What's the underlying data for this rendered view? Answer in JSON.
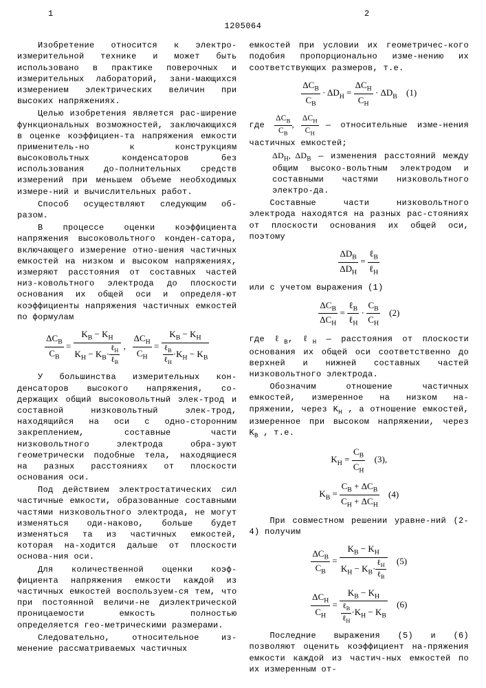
{
  "docnum": "1205064",
  "topleft": "1",
  "topright": "2",
  "line_numbers_left": [
    "5",
    "10",
    "15",
    "20",
    "25",
    "30",
    "35",
    "40",
    "45",
    "50",
    "55"
  ],
  "col1": {
    "para1": "Изобретение относится к электро-измерительной технике и может быть использовано в практике поверочных и измерительных лабораторий, зани-мающихся измерением электрических величин при высоких напряжениях.",
    "para2": "Целью изобретения является рас-ширение функциональных возможностей, заключающихся в оценке коэффициен-та напряжения емкости применитель-но к конструкциям высоковольтных конденсаторов без использования до-полнительных средств измерений при меньшем объеме необходимых измере-ний и вычислительных работ.",
    "para3": "Способ осуществляют следующим об-разом.",
    "para4": "В процессе оценки коэффициента напряжения высоковольтного конден-сатора, включающего измерение отно-шения частичных емкостей на низком и высоком напряжениях, измеряют расстояния от составных частей низ-ковольтного электрода до плоскости основания их общей оси и определя-ют коэффициенты напряжения частичных емкостей по формулам",
    "para5": "У большинства измерительных кон-денсаторов высокого напряжения, со-держащих общий высоковольтный элек-трод и составной низковольтный элек-трод, находящийся на оси с одно-сторонним закреплением, составные части низковольтного электрода обра-зуют геометрически подобные тела, находящиеся на разных расстояниях от плоскости основания оси.",
    "para6": "Под действием электростатических сил частичные емкости, образованные составными частями низковольтного электрода, не могут изменяться оди-наково, больше будет изменяться та из частичных емкостей, которая на-ходится дальше от плоскости основа-ния оси.",
    "para7": "Для количественной оценки коэф-фициента напряжения емкости каждой из частичных емкостей воспользуем-ся тем, что при постоянной величи-не диэлектрической проницаемости емкость полностью определяется гео-метрическими размерами.",
    "para8": "Следовательно, относительное из-менение рассматриваемых частичных"
  },
  "col2": {
    "para1": "емкостей при условии их геометричес-кого подобия пропорционально изме-нению их соответствующих размеров, т.е.",
    "where1a": "где",
    "where1b": "— относительные изме-нения частичных емкостей;",
    "where1c": "— изменения расстояний между общим высоко-вольтным электродом и составными частями низковольтного электро-да.",
    "para2": "Составные части низковольтного электрода находятся на разных рас-стояниях от плоскости основания их общей оси, поэтому",
    "phrase1": "или с учетом выражения (1)",
    "where2a": "где ℓ",
    "where2b": "— расстояния от плоскости основания их общей оси соответственно до верхней и нижней составных частей низковольтного электрода.",
    "para3": "Обозначим отношение частичных емкостей, измеренное на низком на-пряжении, через K",
    "para3b": ", а отношение емкостей, измеренное при высоком напряжении, через K",
    "para3c": ", т.е.",
    "para4": "При совместном решении уравне-ний (2-4) получим",
    "para5": "Последние выражения (5) и (6) позволяют оценить коэффициент на-пряжения емкости каждой из частич-ных емкостей по их измеренным от-"
  },
  "formulas": {
    "f1_num1": "ΔC",
    "f2_eq": "(2)",
    "f3_eq": "(3),",
    "f4_eq": "(4)",
    "f5_eq": "(5)",
    "f6_eq": "(6)"
  }
}
